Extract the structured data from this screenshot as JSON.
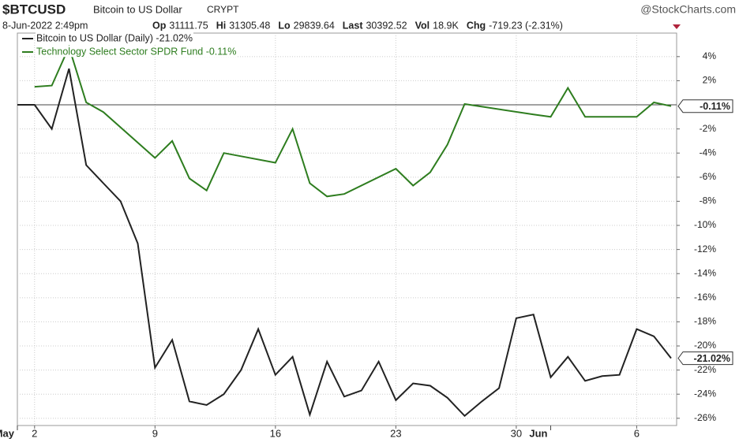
{
  "header": {
    "symbol": "$BTCUSD",
    "name": "Bitcoin to US Dollar",
    "exchange": "CRYPT",
    "source": "@StockCharts.com",
    "timestamp": "8-Jun-2022 2:49pm",
    "quotes": [
      {
        "label": "Op",
        "value": 31111.75
      },
      {
        "label": "Hi",
        "value": 31305.48
      },
      {
        "label": "Lo",
        "value": 29839.64
      },
      {
        "label": "Last",
        "value": 30392.52
      },
      {
        "label": "Vol",
        "value": "18.9K"
      },
      {
        "label": "Chg",
        "value": "-719.23 (-2.31%)"
      }
    ]
  },
  "chart_data": {
    "type": "line",
    "xlim": [
      "2022-05-01",
      "2022-06-08"
    ],
    "ylim": [
      -26.6,
      5.95
    ],
    "yticks": [
      {
        "value": 4,
        "label": "4%"
      },
      {
        "value": 2,
        "label": "2%"
      },
      {
        "value": -2,
        "label": "-2%"
      },
      {
        "value": -4,
        "label": "-4%"
      },
      {
        "value": -6,
        "label": "-6%"
      },
      {
        "value": -8,
        "label": "-8%"
      },
      {
        "value": -10,
        "label": "-10%"
      },
      {
        "value": -12,
        "label": "-12%"
      },
      {
        "value": -14,
        "label": "-14%"
      },
      {
        "value": -16,
        "label": "-16%"
      },
      {
        "value": -18,
        "label": "-18%"
      },
      {
        "value": -20,
        "label": "-20%"
      },
      {
        "value": -22,
        "label": "-22%"
      },
      {
        "value": -24,
        "label": "-24%"
      },
      {
        "value": -26,
        "label": "-26%"
      }
    ],
    "xticks": [
      {
        "value": "2022-05-02",
        "label": "2"
      },
      {
        "value": "2022-05-09",
        "label": "9"
      },
      {
        "value": "2022-05-16",
        "label": "16"
      },
      {
        "value": "2022-05-23",
        "label": "23"
      },
      {
        "value": "2022-05-30",
        "label": "30"
      },
      {
        "value": "2022-06-06",
        "label": "6"
      }
    ],
    "month_labels": [
      {
        "value": "2022-05-01",
        "label": "May"
      },
      {
        "value": "2022-06-01",
        "label": "Jun"
      }
    ],
    "baseline": 0,
    "grid": true,
    "series": [
      {
        "name": "Bitcoin to US Dollar (Daily) -21.02%",
        "color": "#222222",
        "end_label": "-21.02%",
        "x": [
          "2022-05-01",
          "2022-05-02",
          "2022-05-03",
          "2022-05-04",
          "2022-05-05",
          "2022-05-06",
          "2022-05-07",
          "2022-05-08",
          "2022-05-09",
          "2022-05-10",
          "2022-05-11",
          "2022-05-12",
          "2022-05-13",
          "2022-05-14",
          "2022-05-15",
          "2022-05-16",
          "2022-05-17",
          "2022-05-18",
          "2022-05-19",
          "2022-05-20",
          "2022-05-21",
          "2022-05-22",
          "2022-05-23",
          "2022-05-24",
          "2022-05-25",
          "2022-05-26",
          "2022-05-27",
          "2022-05-28",
          "2022-05-29",
          "2022-05-30",
          "2022-05-31",
          "2022-06-01",
          "2022-06-02",
          "2022-06-03",
          "2022-06-04",
          "2022-06-05",
          "2022-06-06",
          "2022-06-07",
          "2022-06-08"
        ],
        "values": [
          0,
          0,
          -2,
          3,
          -5,
          -6.5,
          -8,
          -11.5,
          -21.8,
          -19.5,
          -24.6,
          -24.9,
          -24,
          -22,
          -18.6,
          -22.4,
          -20.9,
          -25.7,
          -21.3,
          -24.2,
          -23.7,
          -21.3,
          -24.5,
          -23.1,
          -23.3,
          -24.3,
          -25.8,
          -24.6,
          -23.5,
          -17.7,
          -17.4,
          -22.6,
          -20.9,
          -22.9,
          -22.5,
          -22.4,
          -18.6,
          -19.2,
          -21.02
        ]
      },
      {
        "name": "Technology Select Sector SPDR Fund -0.11%",
        "color": "#2e7d1f",
        "end_label": "-0.11%",
        "x": [
          "2022-05-02",
          "2022-05-03",
          "2022-05-04",
          "2022-05-05",
          "2022-05-06",
          "2022-05-09",
          "2022-05-10",
          "2022-05-11",
          "2022-05-12",
          "2022-05-13",
          "2022-05-16",
          "2022-05-17",
          "2022-05-18",
          "2022-05-19",
          "2022-05-20",
          "2022-05-23",
          "2022-05-24",
          "2022-05-25",
          "2022-05-26",
          "2022-05-27",
          "2022-05-31",
          "2022-06-01",
          "2022-06-02",
          "2022-06-03",
          "2022-06-06",
          "2022-06-07",
          "2022-06-08"
        ],
        "values": [
          1.5,
          1.6,
          4.8,
          0.2,
          -0.6,
          -4.4,
          -3,
          -6.1,
          -7.1,
          -4,
          -4.8,
          -2,
          -6.5,
          -7.6,
          -7.4,
          -5.3,
          -6.7,
          -5.6,
          -3.3,
          0.07,
          -0.8,
          -1.0,
          1.4,
          -1.0,
          -1.0,
          0.2,
          -0.11
        ]
      }
    ]
  }
}
